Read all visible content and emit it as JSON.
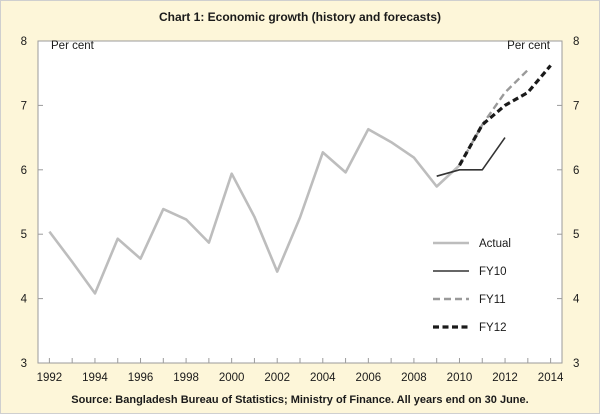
{
  "chart_data": {
    "type": "line",
    "title": "Chart 1: Economic growth (history and forecasts)",
    "source": "Source: Bangladesh Bureau of Statistics; Ministry of Finance.  All years end on 30 June.",
    "ylabel_left": "Per cent",
    "ylabel_right": "Per cent",
    "ylim": [
      3,
      8
    ],
    "yticks": [
      3,
      4,
      5,
      6,
      7,
      8
    ],
    "xlim": [
      1991.5,
      2014.5
    ],
    "xticks": [
      1992,
      1994,
      1996,
      1998,
      2000,
      2002,
      2004,
      2006,
      2008,
      2010,
      2012,
      2014
    ],
    "grid": false,
    "legend_position": "right",
    "series": [
      {
        "name": "Actual",
        "style": "solid",
        "color": "#bdbdbd",
        "x": [
          1992,
          1993,
          1994,
          1995,
          1996,
          1997,
          1998,
          1999,
          2000,
          2001,
          2002,
          2003,
          2004,
          2005,
          2006,
          2007,
          2008,
          2009,
          2010
        ],
        "y": [
          5.04,
          4.57,
          4.08,
          4.93,
          4.62,
          5.39,
          5.23,
          4.87,
          5.94,
          5.27,
          4.42,
          5.26,
          6.27,
          5.96,
          6.63,
          6.43,
          6.19,
          5.74,
          6.07
        ]
      },
      {
        "name": "FY10",
        "style": "solid",
        "color": "#333333",
        "x": [
          2009,
          2010,
          2011,
          2012
        ],
        "y": [
          5.9,
          6.0,
          6.0,
          6.5
        ]
      },
      {
        "name": "FY11",
        "style": "dashed",
        "color": "#9a9a9a",
        "x": [
          2010,
          2011,
          2012,
          2013
        ],
        "y": [
          6.07,
          6.7,
          7.2,
          7.55
        ]
      },
      {
        "name": "FY12",
        "style": "dashed",
        "color": "#1a1a1a",
        "x": [
          2010,
          2011,
          2012,
          2013,
          2014
        ],
        "y": [
          6.07,
          6.7,
          7.0,
          7.2,
          7.62
        ]
      }
    ]
  }
}
